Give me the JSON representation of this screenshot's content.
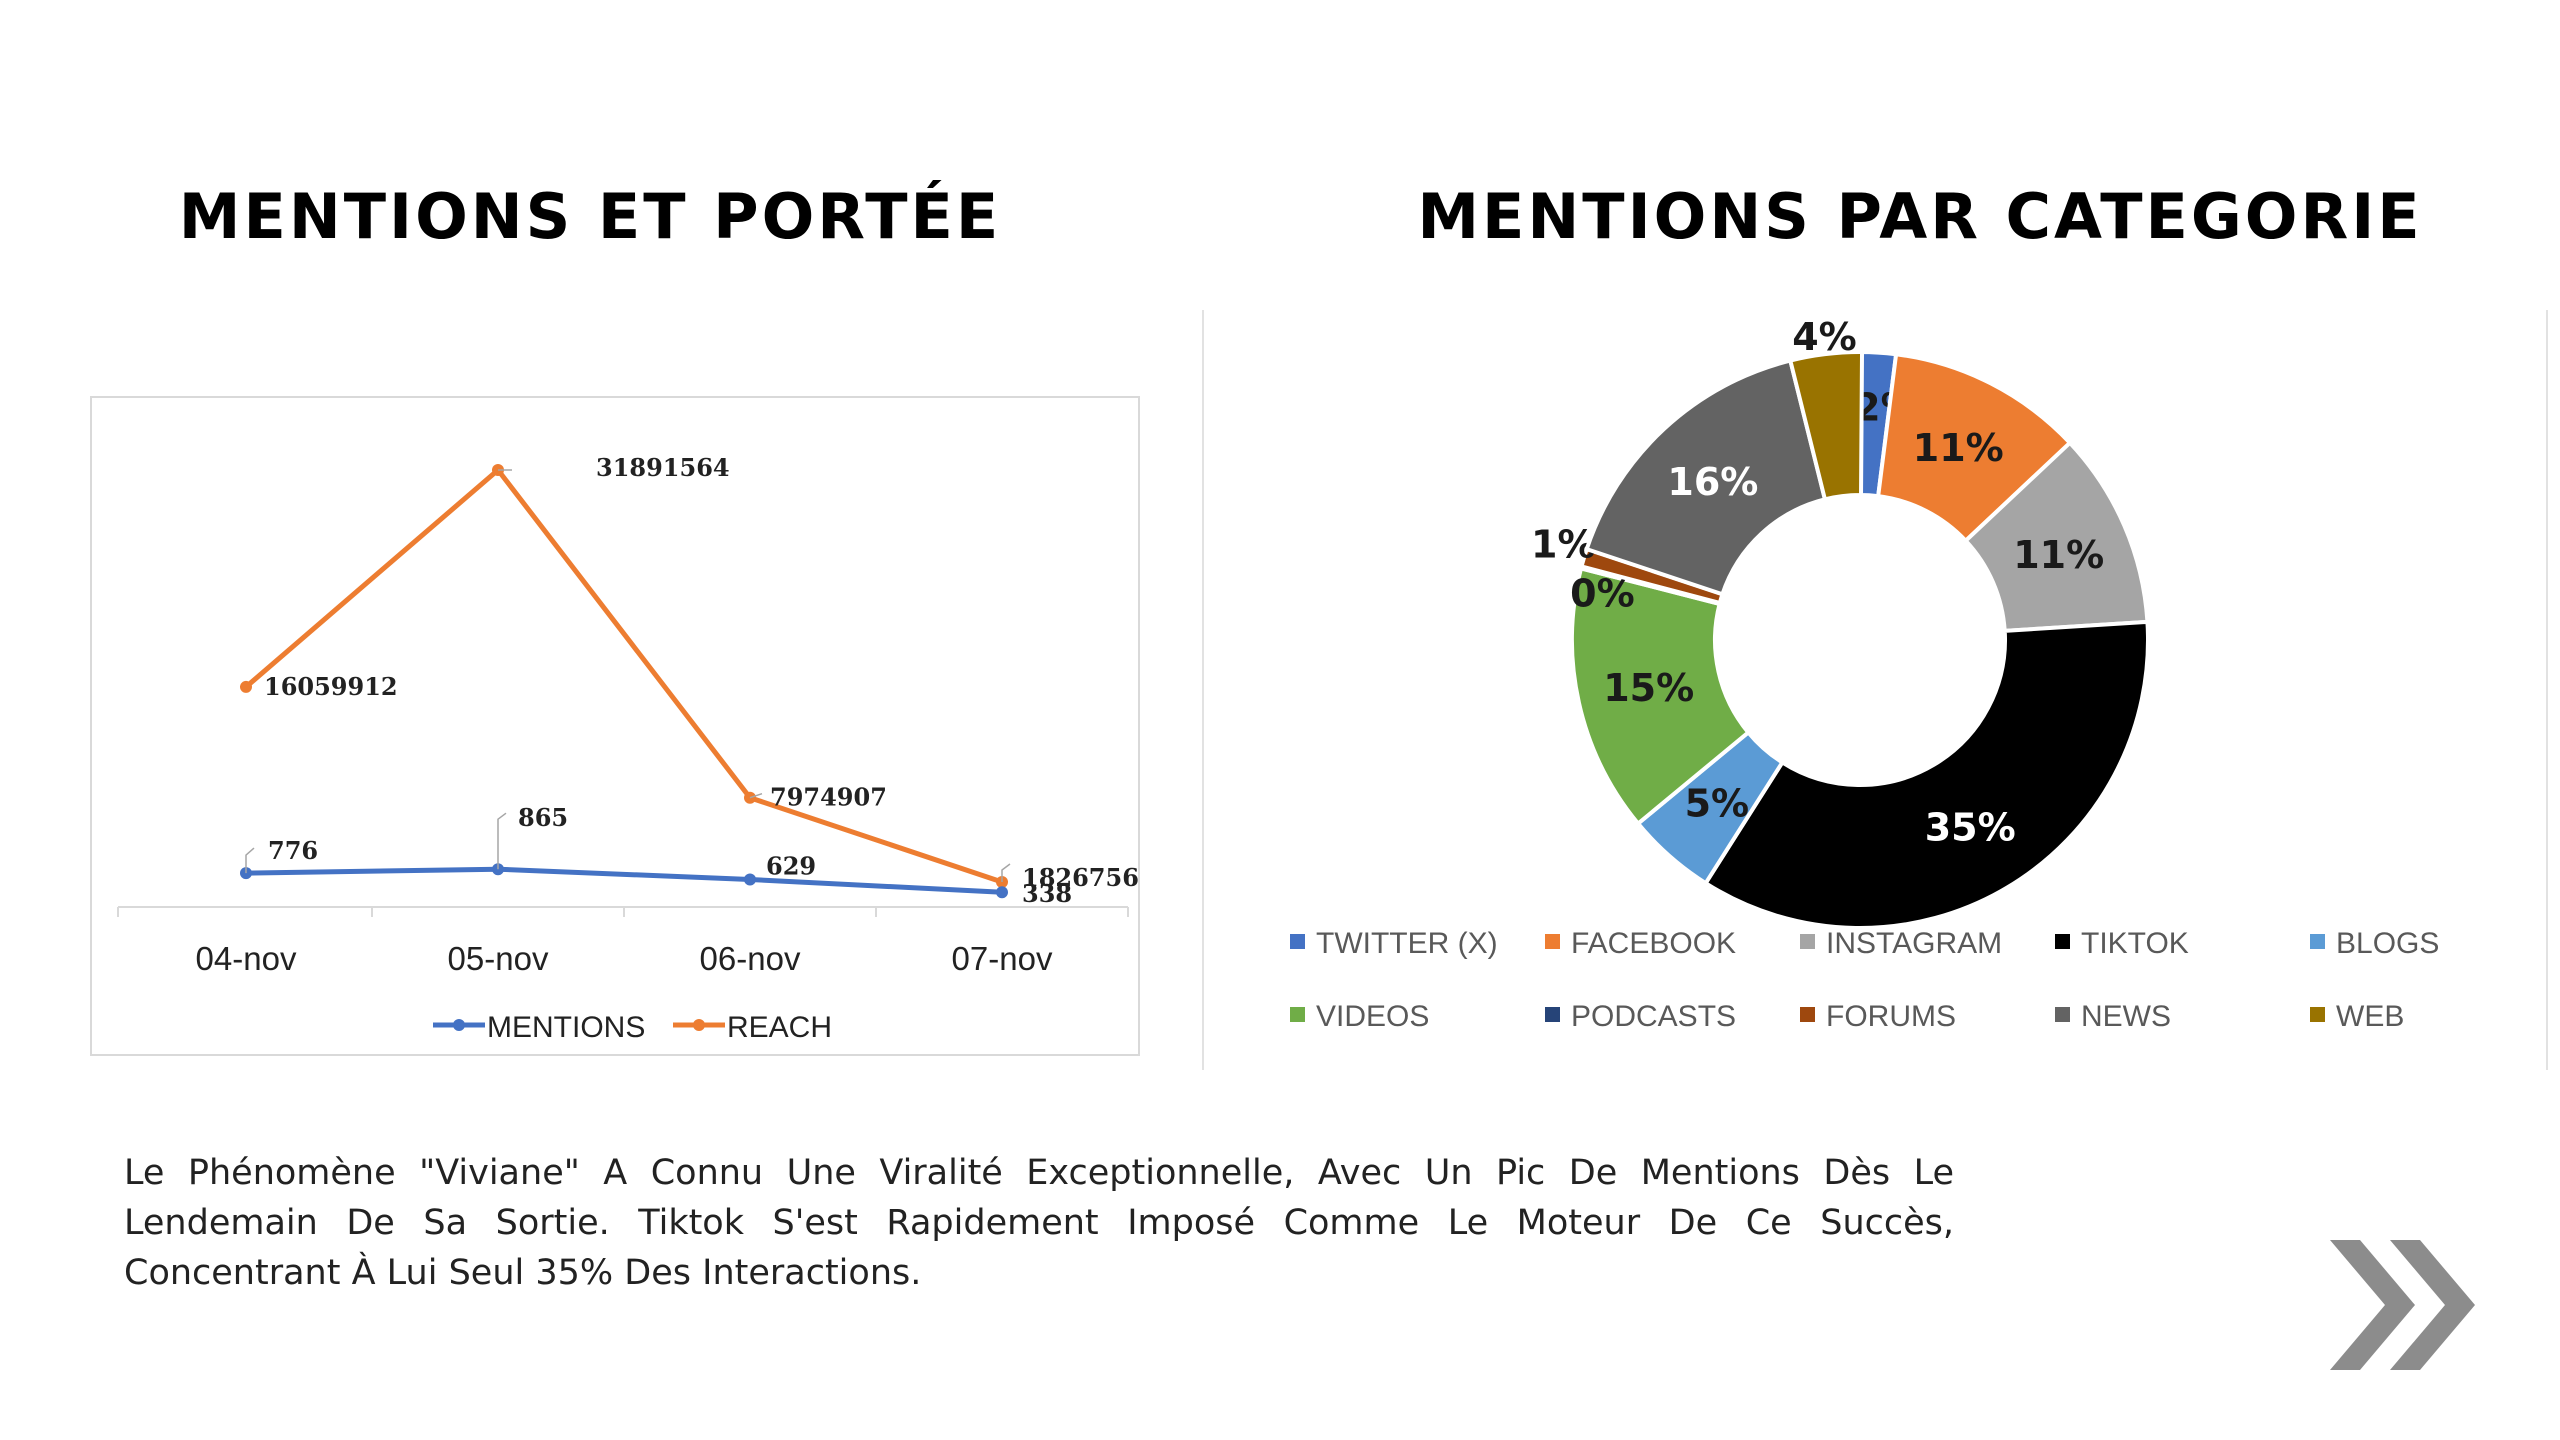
{
  "titles": {
    "line": "MENTIONS ET PORTÉE",
    "donut": "MENTIONS PAR CATEGORIE"
  },
  "chart_data": [
    {
      "type": "line",
      "categories": [
        "04-nov",
        "05-nov",
        "06-nov",
        "07-nov"
      ],
      "series": [
        {
          "name": "MENTIONS",
          "color": "#4472C4",
          "values": [
            776,
            865,
            629,
            338
          ],
          "labels": [
            "776",
            "865",
            "629",
            "338"
          ]
        },
        {
          "name": "REACH",
          "color": "#ED7D31",
          "values": [
            16059912,
            31891564,
            7974907,
            1826756
          ],
          "labels": [
            "16059912",
            "31891564",
            "7974907",
            "1826756"
          ]
        }
      ],
      "legend": "bottom",
      "grid": false
    },
    {
      "type": "pie",
      "donut": true,
      "categories": [
        "TWITTER (X)",
        "FACEBOOK",
        "INSTAGRAM",
        "TIKTOK",
        "BLOGS",
        "VIDEOS",
        "PODCASTS",
        "FORUMS",
        "NEWS",
        "WEB"
      ],
      "values": [
        2,
        11,
        11,
        35,
        5,
        15,
        0,
        1,
        16,
        4
      ],
      "labels": [
        "2%",
        "11%",
        "11%",
        "35%",
        "5%",
        "15%",
        "0%",
        "1%",
        "16%",
        "4%"
      ],
      "colors": [
        "#4472C4",
        "#ED7D31",
        "#A5A5A5",
        "#000000",
        "#5B9BD5",
        "#70AD47",
        "#264478",
        "#9E480E",
        "#636363",
        "#997300"
      ],
      "legend": "bottom"
    }
  ],
  "description": "Le Phénomène \"Viviane\" A Connu Une Viralité Exceptionnelle, Avec Un Pic De Mentions Dès Le Lendemain De Sa Sortie. Tiktok S'est Rapidement Imposé Comme Le Moteur De Ce Succès, Concentrant À Lui Seul 35% Des Interactions.",
  "icons": {
    "next": "double-chevron-right-icon"
  },
  "colors": {
    "arrow": "#8c8c8c",
    "frame": "#d9d9d9"
  }
}
